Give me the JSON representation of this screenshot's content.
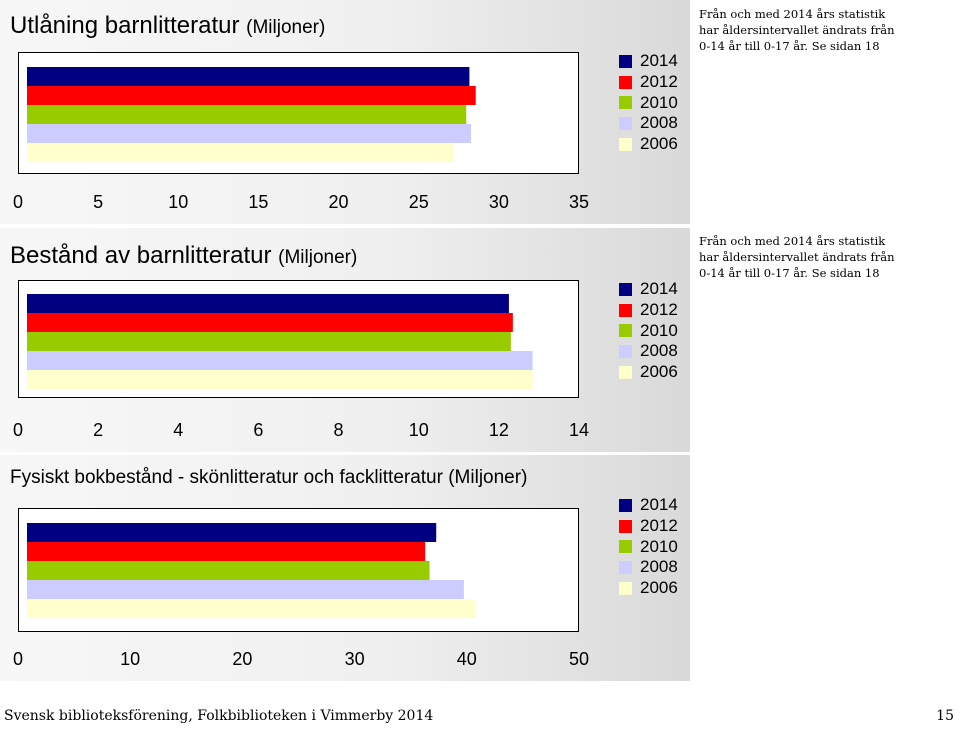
{
  "colors": {
    "2014": "#000080",
    "2012": "#ff0000",
    "2010": "#99cc00",
    "2008": "#ccccff",
    "2006": "#ffffcc"
  },
  "legend": [
    "2014",
    "2012",
    "2010",
    "2008",
    "2006"
  ],
  "note": "Från och med 2014 års statistik har åldersintervallet ändrats från 0-14 år till 0-17 år. Se sidan 18",
  "chart_data": [
    {
      "type": "bar",
      "orientation": "horizontal",
      "title": "Utlåning barnlitteratur",
      "subtitle": "(Miljoner)",
      "xlim": [
        0,
        35
      ],
      "ticks": [
        0,
        5,
        10,
        15,
        20,
        25,
        30,
        35
      ],
      "grid": false,
      "legend_position": "right",
      "series": [
        {
          "name": "2014",
          "value": 28.0
        },
        {
          "name": "2012",
          "value": 28.4
        },
        {
          "name": "2010",
          "value": 27.8
        },
        {
          "name": "2008",
          "value": 28.1
        },
        {
          "name": "2006",
          "value": 27.0
        }
      ]
    },
    {
      "type": "bar",
      "orientation": "horizontal",
      "title": "Bestånd av barnlitteratur",
      "subtitle": "(Miljoner)",
      "xlim": [
        0,
        14
      ],
      "ticks": [
        0,
        2,
        4,
        6,
        8,
        10,
        12,
        14
      ],
      "grid": false,
      "legend_position": "right",
      "series": [
        {
          "name": "2014",
          "value": 12.2
        },
        {
          "name": "2012",
          "value": 12.3
        },
        {
          "name": "2010",
          "value": 12.25
        },
        {
          "name": "2008",
          "value": 12.8
        },
        {
          "name": "2006",
          "value": 12.8
        }
      ]
    },
    {
      "type": "bar",
      "orientation": "horizontal",
      "title": "Fysiskt bokbestånd - skönlitteratur och facklitteratur (Miljoner)",
      "subtitle": "",
      "xlim": [
        0,
        50
      ],
      "ticks": [
        0,
        10,
        20,
        30,
        40,
        50
      ],
      "grid": false,
      "legend_position": "right",
      "series": [
        {
          "name": "2014",
          "value": 37.0
        },
        {
          "name": "2012",
          "value": 36.0
        },
        {
          "name": "2010",
          "value": 36.4
        },
        {
          "name": "2008",
          "value": 39.5
        },
        {
          "name": "2006",
          "value": 40.5
        }
      ]
    }
  ],
  "footer": {
    "left": "Svensk biblioteksförening, Folkbiblioteken i Vimmerby 2014",
    "page": "15"
  }
}
